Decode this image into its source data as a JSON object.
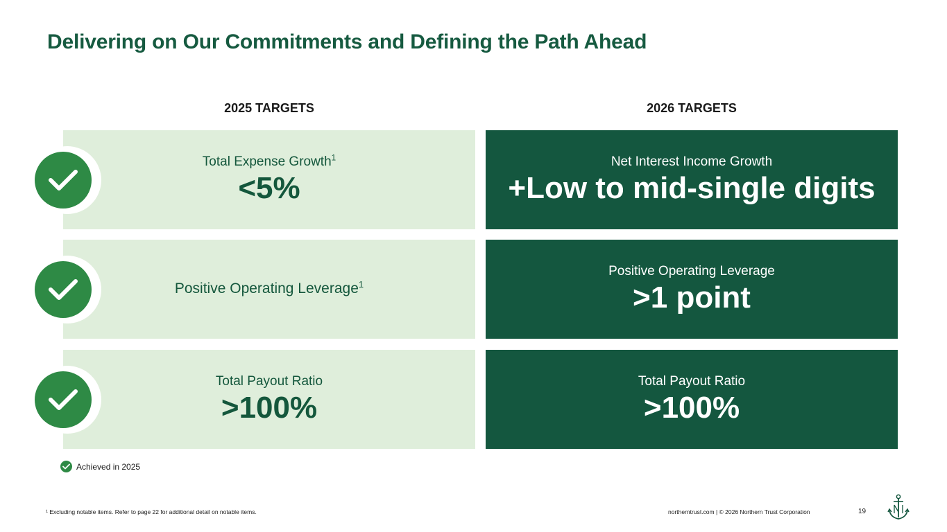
{
  "title": "Delivering on Our Commitments and Defining the Path Ahead",
  "columns": {
    "left_heading": "2025 TARGETS",
    "right_heading": "2026 TARGETS"
  },
  "targets_2025": [
    {
      "label": "Total Expense Growth",
      "footnote_mark": "1",
      "value": "<5%",
      "achieved": true
    },
    {
      "label": "Positive Operating Leverage",
      "footnote_mark": "1",
      "value": "",
      "achieved": true
    },
    {
      "label": "Total Payout Ratio",
      "footnote_mark": "",
      "value": ">100%",
      "achieved": true
    }
  ],
  "targets_2026": [
    {
      "label": "Net Interest Income Growth",
      "value": "+Low to mid-single digits"
    },
    {
      "label": "Positive Operating Leverage",
      "value": ">1 point"
    },
    {
      "label": "Total Payout Ratio",
      "value": ">100%"
    }
  ],
  "legend": {
    "label": "Achieved in 2025",
    "icon": "checkmark-icon"
  },
  "footer": {
    "footnote": "¹ Excluding notable items. Refer to page 22 for additional detail on notable items.",
    "site_copyright": "northerntrust.com | © 2026 Northern Trust Corporation",
    "page_number": "19",
    "logo": "northern-trust-anchor-logo"
  },
  "colors": {
    "brand_green": "#14573f",
    "title_green": "#165a40",
    "light_card": "#dfeedb",
    "check_green": "#2e8a45"
  }
}
